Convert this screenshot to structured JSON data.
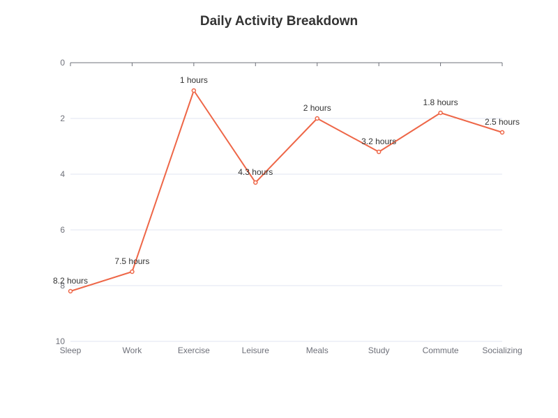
{
  "chart_data": {
    "type": "line",
    "title": "Daily Activity Breakdown",
    "categories": [
      "Sleep",
      "Work",
      "Exercise",
      "Leisure",
      "Meals",
      "Study",
      "Commute",
      "Socializing"
    ],
    "series": [
      {
        "values": [
          8.2,
          7.5,
          1,
          4.3,
          2,
          3.2,
          1.8,
          2.5
        ],
        "data_labels": [
          "8.2 hours",
          "7.5 hours",
          "1 hours",
          "4.3 hours",
          "2 hours",
          "3.2 hours",
          "1.8 hours",
          "2.5 hours"
        ]
      }
    ],
    "y_axis": {
      "range": [
        0,
        10
      ],
      "inverted": true,
      "ticks": [
        0,
        2,
        4,
        6,
        8,
        10
      ]
    },
    "grid": true,
    "legend": "none",
    "colors": {
      "line": "#ee6647",
      "grid": "#e0e6f1",
      "axis": "#6e7079",
      "title": "#333333"
    }
  }
}
